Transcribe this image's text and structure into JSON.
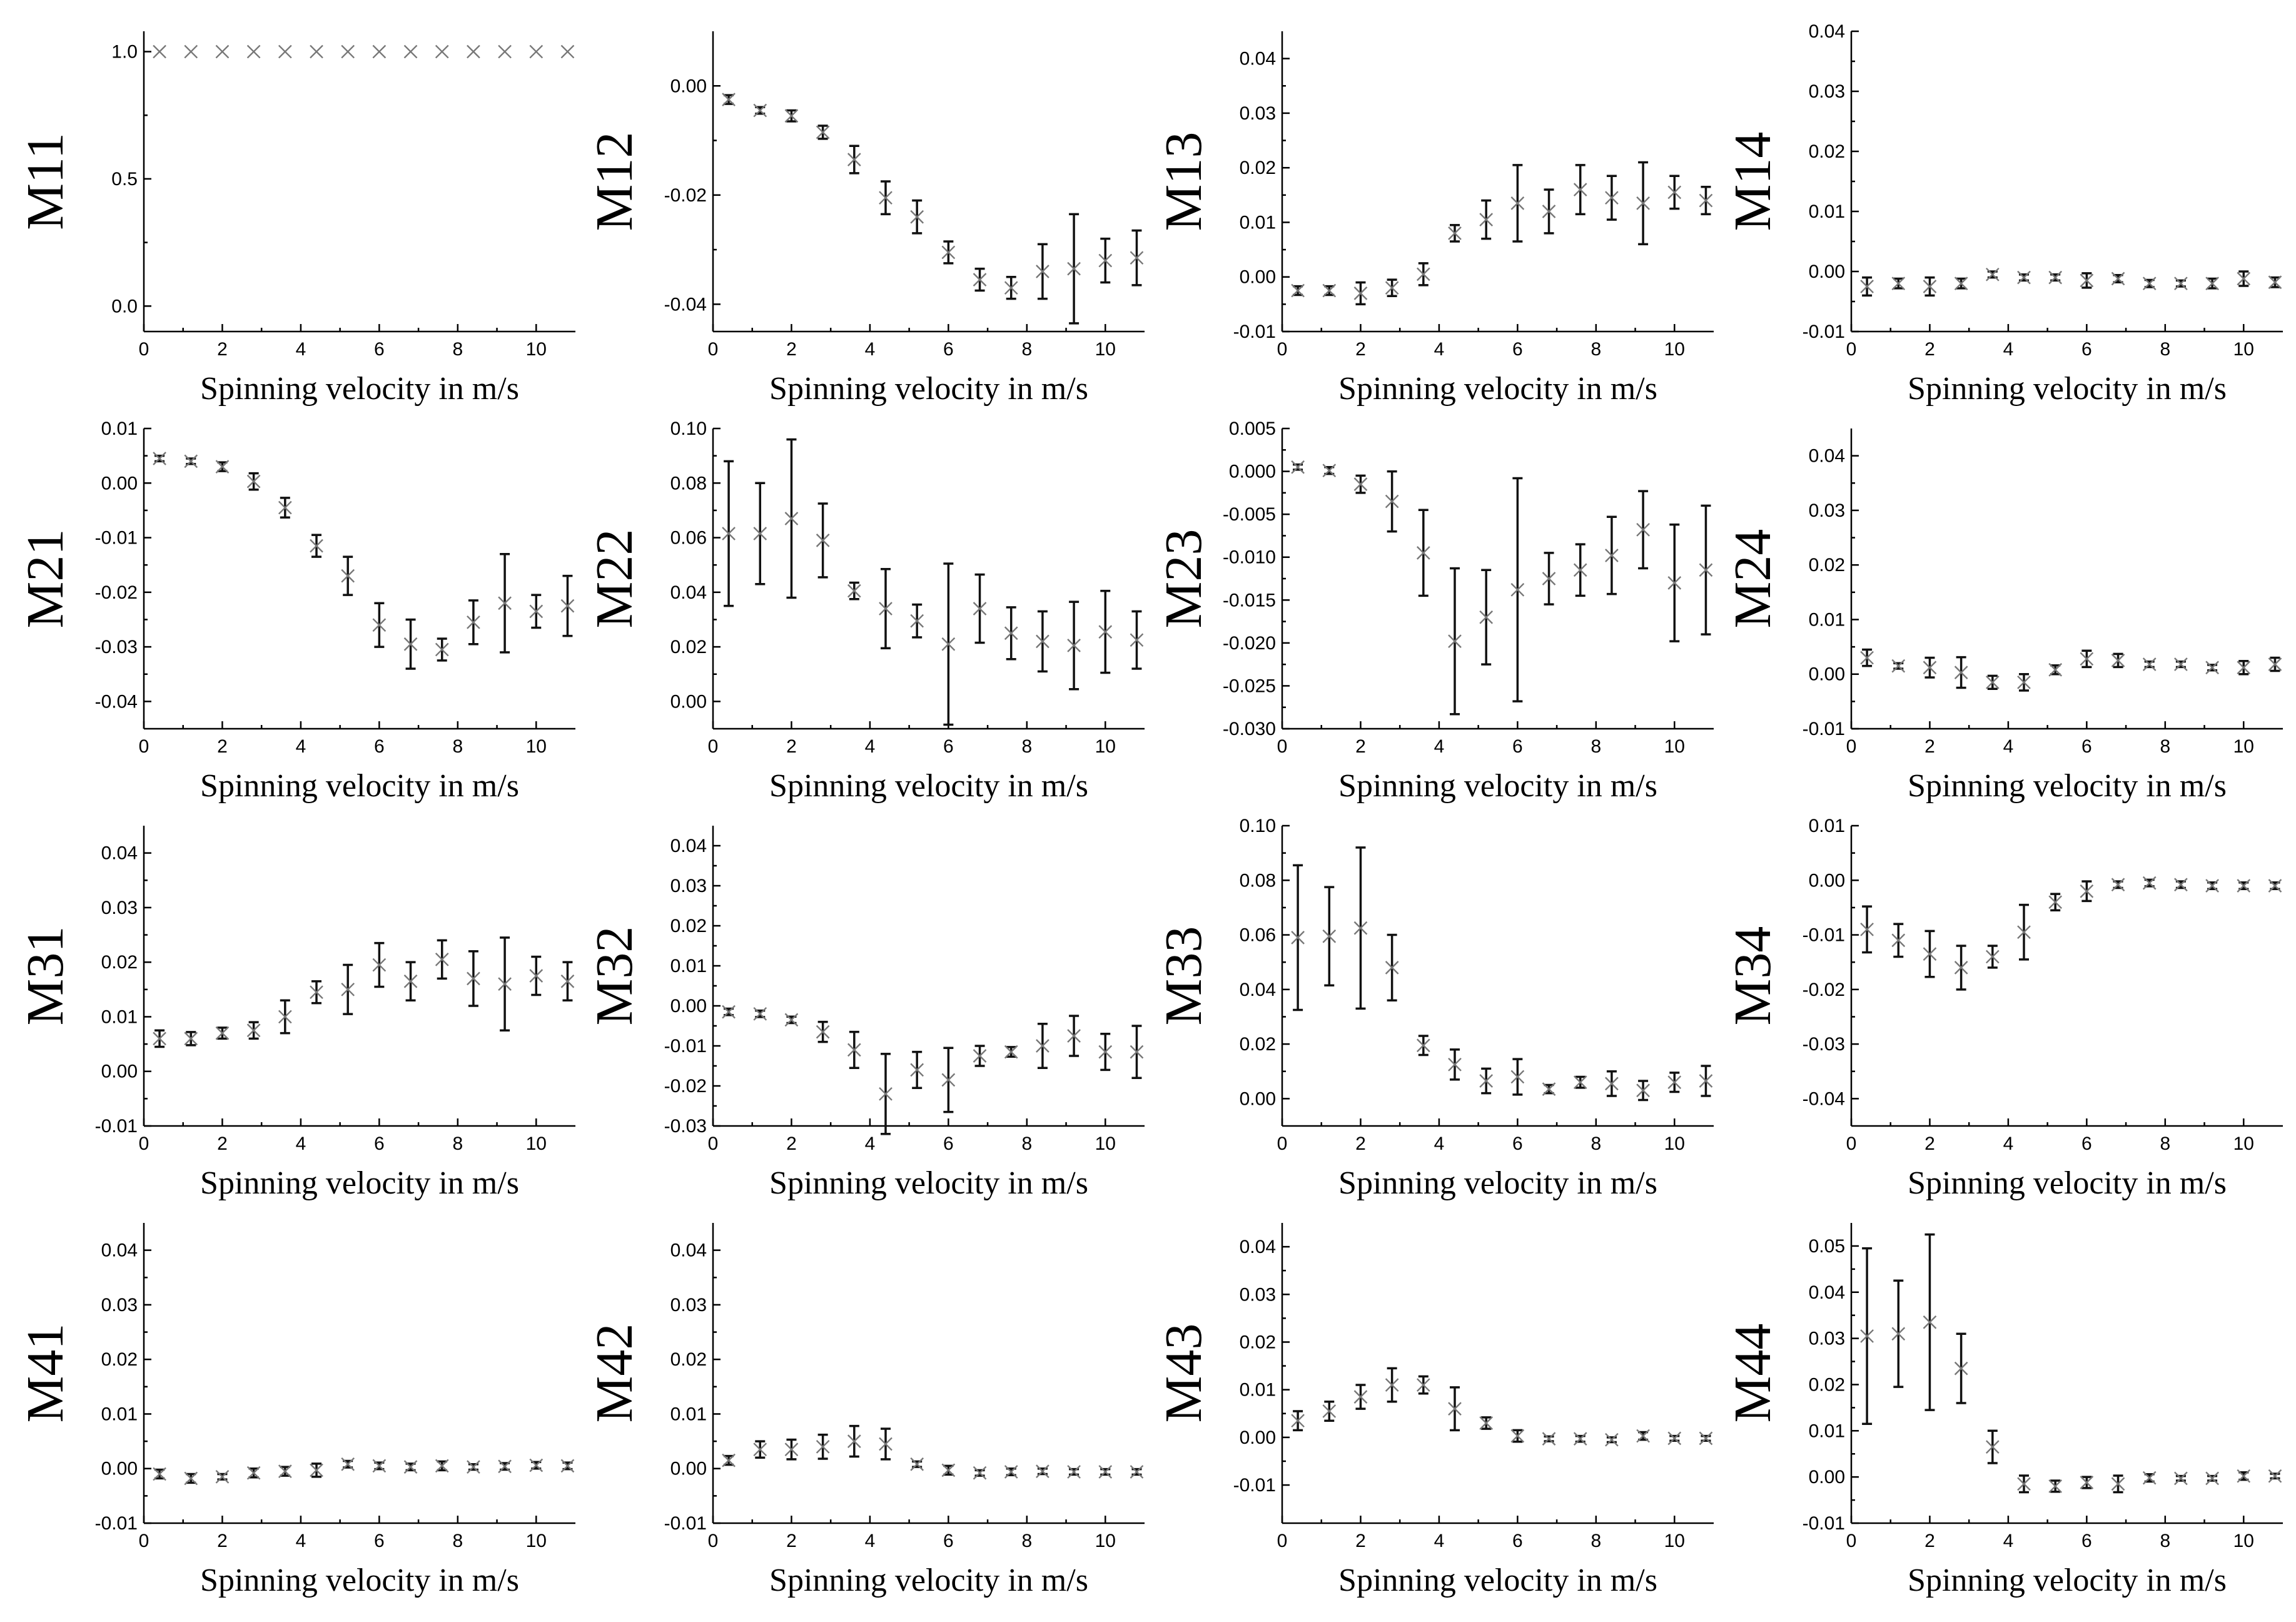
{
  "chart_data": [
    {
      "type": "scatter",
      "panel": "M11",
      "ylabel": "M11",
      "xlabel": "Spinning velocity in m/s",
      "xlim": [
        0,
        11
      ],
      "xticks": [
        0,
        2,
        4,
        6,
        8,
        10
      ],
      "ylim": [
        -0.1,
        1.08
      ],
      "yticks": [
        0.0,
        0.5,
        1.0
      ],
      "ytick_labels": [
        "0.0",
        "0.5",
        "1.0"
      ],
      "x": [
        0.4,
        1.2,
        2.0,
        2.8,
        3.6,
        4.4,
        5.2,
        6.0,
        6.8,
        7.6,
        8.4,
        9.2,
        10.0,
        10.8
      ],
      "y": [
        1,
        1,
        1,
        1,
        1,
        1,
        1,
        1,
        1,
        1,
        1,
        1,
        1,
        1
      ],
      "err": [
        0,
        0,
        0,
        0,
        0,
        0,
        0,
        0,
        0,
        0,
        0,
        0,
        0,
        0
      ]
    },
    {
      "type": "scatter",
      "panel": "M12",
      "ylabel": "M12",
      "xlabel": "Spinning velocity in m/s",
      "xlim": [
        0,
        11
      ],
      "xticks": [
        0,
        2,
        4,
        6,
        8,
        10
      ],
      "ylim": [
        -0.045,
        0.01
      ],
      "yticks": [
        -0.04,
        -0.02,
        0.0
      ],
      "ytick_labels": [
        "-0.04",
        "-0.02",
        "0.00"
      ],
      "x": [
        0.4,
        1.2,
        2.0,
        2.8,
        3.6,
        4.4,
        5.2,
        6.0,
        6.8,
        7.6,
        8.4,
        9.2,
        10.0,
        10.8
      ],
      "y": [
        -0.0025,
        -0.0045,
        -0.0055,
        -0.0085,
        -0.0135,
        -0.0205,
        -0.024,
        -0.0305,
        -0.0355,
        -0.037,
        -0.034,
        -0.0335,
        -0.032,
        -0.0315
      ],
      "err": [
        0.0008,
        0.0006,
        0.001,
        0.0012,
        0.0025,
        0.003,
        0.003,
        0.002,
        0.002,
        0.002,
        0.005,
        0.01,
        0.004,
        0.005
      ]
    },
    {
      "type": "scatter",
      "panel": "M13",
      "ylabel": "M13",
      "xlabel": "Spinning velocity in m/s",
      "xlim": [
        0,
        11
      ],
      "xticks": [
        0,
        2,
        4,
        6,
        8,
        10
      ],
      "ylim": [
        -0.01,
        0.045
      ],
      "yticks": [
        -0.01,
        0.0,
        0.01,
        0.02,
        0.03,
        0.04
      ],
      "ytick_labels": [
        "-0.01",
        "0.00",
        "0.01",
        "0.02",
        "0.03",
        "0.04"
      ],
      "x": [
        0.4,
        1.2,
        2.0,
        2.8,
        3.6,
        4.4,
        5.2,
        6.0,
        6.8,
        7.6,
        8.4,
        9.2,
        10.0,
        10.8
      ],
      "y": [
        -0.0025,
        -0.0025,
        -0.003,
        -0.002,
        0.0005,
        0.008,
        0.0105,
        0.0135,
        0.012,
        0.016,
        0.0145,
        0.0135,
        0.0155,
        0.014
      ],
      "err": [
        0.0008,
        0.0008,
        0.002,
        0.0015,
        0.002,
        0.0015,
        0.0035,
        0.007,
        0.004,
        0.0045,
        0.004,
        0.0075,
        0.003,
        0.0025
      ]
    },
    {
      "type": "scatter",
      "panel": "M14",
      "ylabel": "M14",
      "xlabel": "Spinning velocity in m/s",
      "xlim": [
        0,
        11
      ],
      "xticks": [
        0,
        2,
        4,
        6,
        8,
        10
      ],
      "ylim": [
        -0.01,
        0.04
      ],
      "yticks": [
        -0.01,
        0.0,
        0.01,
        0.02,
        0.03,
        0.04
      ],
      "ytick_labels": [
        "-0.01",
        "0.00",
        "0.01",
        "0.02",
        "0.03",
        "0.04"
      ],
      "x": [
        0.4,
        1.2,
        2.0,
        2.8,
        3.6,
        4.4,
        5.2,
        6.0,
        6.8,
        7.6,
        8.4,
        9.2,
        10.0,
        10.8
      ],
      "y": [
        -0.0025,
        -0.002,
        -0.0025,
        -0.002,
        -0.0005,
        -0.001,
        -0.001,
        -0.0015,
        -0.0012,
        -0.002,
        -0.002,
        -0.002,
        -0.0012,
        -0.0018
      ],
      "err": [
        0.0015,
        0.0008,
        0.0015,
        0.0008,
        0.0005,
        0.0005,
        0.0005,
        0.0012,
        0.0006,
        0.0006,
        0.0005,
        0.0008,
        0.0012,
        0.0008
      ]
    },
    {
      "type": "scatter",
      "panel": "M21",
      "ylabel": "M21",
      "xlabel": "Spinning velocity in m/s",
      "xlim": [
        0,
        11
      ],
      "xticks": [
        0,
        2,
        4,
        6,
        8,
        10
      ],
      "ylim": [
        -0.045,
        0.01
      ],
      "yticks": [
        -0.04,
        -0.03,
        -0.02,
        -0.01,
        0.0,
        0.01
      ],
      "ytick_labels": [
        "-0.04",
        "-0.03",
        "-0.02",
        "-0.01",
        "0.00",
        "0.01"
      ],
      "x": [
        0.4,
        1.2,
        2.0,
        2.8,
        3.6,
        4.4,
        5.2,
        6.0,
        6.8,
        7.6,
        8.4,
        9.2,
        10.0,
        10.8
      ],
      "y": [
        0.0045,
        0.004,
        0.003,
        0.0003,
        -0.0045,
        -0.0115,
        -0.017,
        -0.026,
        -0.0295,
        -0.0305,
        -0.0255,
        -0.022,
        -0.0235,
        -0.0225
      ],
      "err": [
        0.0005,
        0.0005,
        0.0008,
        0.0015,
        0.0018,
        0.002,
        0.0035,
        0.004,
        0.0045,
        0.002,
        0.004,
        0.009,
        0.003,
        0.0055
      ]
    },
    {
      "type": "scatter",
      "panel": "M22",
      "ylabel": "M22",
      "xlabel": "Spinning velocity in m/s",
      "xlim": [
        0,
        11
      ],
      "xticks": [
        0,
        2,
        4,
        6,
        8,
        10
      ],
      "ylim": [
        -0.01,
        0.1
      ],
      "yticks": [
        0.0,
        0.02,
        0.04,
        0.06,
        0.08,
        0.1
      ],
      "ytick_labels": [
        "0.00",
        "0.02",
        "0.04",
        "0.06",
        "0.08",
        "0.10"
      ],
      "x": [
        0.4,
        1.2,
        2.0,
        2.8,
        3.6,
        4.4,
        5.2,
        6.0,
        6.8,
        7.6,
        8.4,
        9.2,
        10.0,
        10.8
      ],
      "y": [
        0.0615,
        0.0615,
        0.067,
        0.059,
        0.0405,
        0.034,
        0.0295,
        0.021,
        0.034,
        0.025,
        0.022,
        0.0205,
        0.0255,
        0.0225
      ],
      "err": [
        0.0265,
        0.0185,
        0.029,
        0.0135,
        0.003,
        0.0145,
        0.006,
        0.0295,
        0.0125,
        0.0095,
        0.011,
        0.016,
        0.015,
        0.0105
      ]
    },
    {
      "type": "scatter",
      "panel": "M23",
      "ylabel": "M23",
      "xlabel": "Spinning velocity in m/s",
      "xlim": [
        0,
        11
      ],
      "xticks": [
        0,
        2,
        4,
        6,
        8,
        10
      ],
      "ylim": [
        -0.03,
        0.005
      ],
      "yticks": [
        -0.03,
        -0.025,
        -0.02,
        -0.015,
        -0.01,
        -0.005,
        0.0,
        0.005
      ],
      "ytick_labels": [
        "-0.030",
        "-0.025",
        "-0.020",
        "-0.015",
        "-0.010",
        "-0.005",
        "0.000",
        "0.005"
      ],
      "x": [
        0.4,
        1.2,
        2.0,
        2.8,
        3.6,
        4.4,
        5.2,
        6.0,
        6.8,
        7.6,
        8.4,
        9.2,
        10.0,
        10.8
      ],
      "y": [
        0.0005,
        0.0001,
        -0.0015,
        -0.0035,
        -0.0095,
        -0.0198,
        -0.017,
        -0.0138,
        -0.0125,
        -0.0115,
        -0.0098,
        -0.0068,
        -0.013,
        -0.0115
      ],
      "err": [
        0.0003,
        0.0004,
        0.001,
        0.0035,
        0.005,
        0.0085,
        0.0055,
        0.013,
        0.003,
        0.003,
        0.0045,
        0.0045,
        0.0068,
        0.0075
      ]
    },
    {
      "type": "scatter",
      "panel": "M24",
      "ylabel": "M24",
      "xlabel": "Spinning velocity in m/s",
      "xlim": [
        0,
        11
      ],
      "xticks": [
        0,
        2,
        4,
        6,
        8,
        10
      ],
      "ylim": [
        -0.01,
        0.045
      ],
      "yticks": [
        -0.01,
        0.0,
        0.01,
        0.02,
        0.03,
        0.04
      ],
      "ytick_labels": [
        "-0.01",
        "0.00",
        "0.01",
        "0.02",
        "0.03",
        "0.04"
      ],
      "x": [
        0.4,
        1.2,
        2.0,
        2.8,
        3.6,
        4.4,
        5.2,
        6.0,
        6.8,
        7.6,
        8.4,
        9.2,
        10.0,
        10.8
      ],
      "y": [
        0.003,
        0.0015,
        0.0012,
        0.0003,
        -0.0015,
        -0.0015,
        0.0008,
        0.0028,
        0.0025,
        0.0018,
        0.0018,
        0.0012,
        0.0012,
        0.0018
      ],
      "err": [
        0.0015,
        0.0005,
        0.0018,
        0.0028,
        0.0012,
        0.0015,
        0.0008,
        0.0015,
        0.0012,
        0.0005,
        0.0005,
        0.0005,
        0.0012,
        0.0012
      ]
    },
    {
      "type": "scatter",
      "panel": "M31",
      "ylabel": "M31",
      "xlabel": "Spinning velocity in m/s",
      "xlim": [
        0,
        11
      ],
      "xticks": [
        0,
        2,
        4,
        6,
        8,
        10
      ],
      "ylim": [
        -0.01,
        0.045
      ],
      "yticks": [
        -0.01,
        0.0,
        0.01,
        0.02,
        0.03,
        0.04
      ],
      "ytick_labels": [
        "-0.01",
        "0.00",
        "0.01",
        "0.02",
        "0.03",
        "0.04"
      ],
      "x": [
        0.4,
        1.2,
        2.0,
        2.8,
        3.6,
        4.4,
        5.2,
        6.0,
        6.8,
        7.6,
        8.4,
        9.2,
        10.0,
        10.8
      ],
      "y": [
        0.006,
        0.006,
        0.007,
        0.0075,
        0.01,
        0.0145,
        0.015,
        0.0195,
        0.0165,
        0.0205,
        0.017,
        0.016,
        0.0175,
        0.0165
      ],
      "err": [
        0.0015,
        0.0012,
        0.001,
        0.0015,
        0.003,
        0.002,
        0.0045,
        0.004,
        0.0035,
        0.0035,
        0.005,
        0.0085,
        0.0035,
        0.0035
      ]
    },
    {
      "type": "scatter",
      "panel": "M32",
      "ylabel": "M32",
      "xlabel": "Spinning velocity in m/s",
      "xlim": [
        0,
        11
      ],
      "xticks": [
        0,
        2,
        4,
        6,
        8,
        10
      ],
      "ylim": [
        -0.03,
        0.045
      ],
      "yticks": [
        -0.03,
        -0.02,
        -0.01,
        0.0,
        0.01,
        0.02,
        0.03,
        0.04
      ],
      "ytick_labels": [
        "-0.03",
        "-0.02",
        "-0.01",
        "0.00",
        "0.01",
        "0.02",
        "0.03",
        "0.04"
      ],
      "x": [
        0.4,
        1.2,
        2.0,
        2.8,
        3.6,
        4.4,
        5.2,
        6.0,
        6.8,
        7.6,
        8.4,
        9.2,
        10.0,
        10.8
      ],
      "y": [
        -0.0015,
        -0.002,
        -0.0035,
        -0.0065,
        -0.011,
        -0.022,
        -0.016,
        -0.0185,
        -0.0125,
        -0.0115,
        -0.01,
        -0.0075,
        -0.0115,
        -0.0115
      ],
      "err": [
        0.0008,
        0.0008,
        0.0008,
        0.0025,
        0.0045,
        0.01,
        0.0045,
        0.008,
        0.0025,
        0.0012,
        0.0055,
        0.005,
        0.0045,
        0.0065
      ]
    },
    {
      "type": "scatter",
      "panel": "M33",
      "ylabel": "M33",
      "xlabel": "Spinning velocity in m/s",
      "xlim": [
        0,
        11
      ],
      "xticks": [
        0,
        2,
        4,
        6,
        8,
        10
      ],
      "ylim": [
        -0.01,
        0.1
      ],
      "yticks": [
        0.0,
        0.02,
        0.04,
        0.06,
        0.08,
        0.1
      ],
      "ytick_labels": [
        "0.00",
        "0.02",
        "0.04",
        "0.06",
        "0.08",
        "0.10"
      ],
      "x": [
        0.4,
        1.2,
        2.0,
        2.8,
        3.6,
        4.4,
        5.2,
        6.0,
        6.8,
        7.6,
        8.4,
        9.2,
        10.0,
        10.8
      ],
      "y": [
        0.059,
        0.0595,
        0.0625,
        0.048,
        0.0195,
        0.0125,
        0.0065,
        0.008,
        0.0035,
        0.006,
        0.0055,
        0.003,
        0.006,
        0.0065
      ],
      "err": [
        0.0265,
        0.018,
        0.0295,
        0.012,
        0.0035,
        0.0055,
        0.0045,
        0.0065,
        0.0015,
        0.002,
        0.0045,
        0.0035,
        0.0035,
        0.0055
      ]
    },
    {
      "type": "scatter",
      "panel": "M34",
      "ylabel": "M34",
      "xlabel": "Spinning velocity in m/s",
      "xlim": [
        0,
        11
      ],
      "xticks": [
        0,
        2,
        4,
        6,
        8,
        10
      ],
      "ylim": [
        -0.045,
        0.01
      ],
      "yticks": [
        -0.04,
        -0.03,
        -0.02,
        -0.01,
        0.0,
        0.01
      ],
      "ytick_labels": [
        "-0.04",
        "-0.03",
        "-0.02",
        "-0.01",
        "0.00",
        "0.01"
      ],
      "x": [
        0.4,
        1.2,
        2.0,
        2.8,
        3.6,
        4.4,
        5.2,
        6.0,
        6.8,
        7.6,
        8.4,
        9.2,
        10.0,
        10.8
      ],
      "y": [
        -0.009,
        -0.011,
        -0.0135,
        -0.016,
        -0.014,
        -0.0095,
        -0.004,
        -0.002,
        -0.0008,
        -0.0005,
        -0.0008,
        -0.001,
        -0.001,
        -0.001
      ],
      "err": [
        0.0042,
        0.003,
        0.0042,
        0.004,
        0.002,
        0.005,
        0.0015,
        0.0018,
        0.0006,
        0.0006,
        0.0006,
        0.0006,
        0.0006,
        0.0006
      ]
    },
    {
      "type": "scatter",
      "panel": "M41",
      "ylabel": "M41",
      "xlabel": "Spinning velocity in m/s",
      "xlim": [
        0,
        11
      ],
      "xticks": [
        0,
        2,
        4,
        6,
        8,
        10
      ],
      "ylim": [
        -0.01,
        0.045
      ],
      "yticks": [
        -0.01,
        0.0,
        0.01,
        0.02,
        0.03,
        0.04
      ],
      "ytick_labels": [
        "-0.01",
        "0.00",
        "0.01",
        "0.02",
        "0.03",
        "0.04"
      ],
      "x": [
        0.4,
        1.2,
        2.0,
        2.8,
        3.6,
        4.4,
        5.2,
        6.0,
        6.8,
        7.6,
        8.4,
        9.2,
        10.0,
        10.8
      ],
      "y": [
        -0.001,
        -0.0018,
        -0.0015,
        -0.0008,
        -0.0005,
        -0.0003,
        0.0008,
        0.0005,
        0.0003,
        0.0005,
        0.0003,
        0.0004,
        0.0006,
        0.0005
      ],
      "err": [
        0.0008,
        0.0008,
        0.0005,
        0.0008,
        0.0008,
        0.0012,
        0.0006,
        0.0006,
        0.0006,
        0.0008,
        0.0005,
        0.0006,
        0.0006,
        0.0006
      ]
    },
    {
      "type": "scatter",
      "panel": "M42",
      "ylabel": "M42",
      "xlabel": "Spinning velocity in m/s",
      "xlim": [
        0,
        11
      ],
      "xticks": [
        0,
        2,
        4,
        6,
        8,
        10
      ],
      "ylim": [
        -0.01,
        0.045
      ],
      "yticks": [
        -0.01,
        0.0,
        0.01,
        0.02,
        0.03,
        0.04
      ],
      "ytick_labels": [
        "-0.01",
        "0.00",
        "0.01",
        "0.02",
        "0.03",
        "0.04"
      ],
      "x": [
        0.4,
        1.2,
        2.0,
        2.8,
        3.6,
        4.4,
        5.2,
        6.0,
        6.8,
        7.6,
        8.4,
        9.2,
        10.0,
        10.8
      ],
      "y": [
        0.0015,
        0.0035,
        0.0035,
        0.004,
        0.005,
        0.0045,
        0.0008,
        -0.0003,
        -0.0008,
        -0.0006,
        -0.0005,
        -0.0006,
        -0.0006,
        -0.0006
      ],
      "err": [
        0.0008,
        0.0015,
        0.0018,
        0.0022,
        0.0028,
        0.0028,
        0.0005,
        0.0008,
        0.0005,
        0.0006,
        0.0005,
        0.0005,
        0.0005,
        0.0005
      ]
    },
    {
      "type": "scatter",
      "panel": "M43",
      "ylabel": "M43",
      "xlabel": "Spinning velocity in m/s",
      "xlim": [
        0,
        11
      ],
      "xticks": [
        0,
        2,
        4,
        6,
        8,
        10
      ],
      "ylim": [
        -0.018,
        0.045
      ],
      "yticks": [
        -0.01,
        0.0,
        0.01,
        0.02,
        0.03,
        0.04
      ],
      "ytick_labels": [
        "-0.01",
        "0.00",
        "0.01",
        "0.02",
        "0.03",
        "0.04"
      ],
      "x": [
        0.4,
        1.2,
        2.0,
        2.8,
        3.6,
        4.4,
        5.2,
        6.0,
        6.8,
        7.6,
        8.4,
        9.2,
        10.0,
        10.8
      ],
      "y": [
        0.0035,
        0.0055,
        0.0085,
        0.011,
        0.011,
        0.006,
        0.003,
        0.0003,
        -0.0003,
        -0.0003,
        -0.0005,
        0.0003,
        -0.0002,
        -0.0002
      ],
      "err": [
        0.002,
        0.002,
        0.0025,
        0.0035,
        0.0018,
        0.0045,
        0.0012,
        0.0012,
        0.0005,
        0.0006,
        0.0005,
        0.0008,
        0.0005,
        0.0005
      ]
    },
    {
      "type": "scatter",
      "panel": "M44",
      "ylabel": "M44",
      "xlabel": "Spinning velocity in m/s",
      "xlim": [
        0,
        11
      ],
      "xticks": [
        0,
        2,
        4,
        6,
        8,
        10
      ],
      "ylim": [
        -0.01,
        0.055
      ],
      "yticks": [
        -0.01,
        0.0,
        0.01,
        0.02,
        0.03,
        0.04,
        0.05
      ],
      "ytick_labels": [
        "-0.01",
        "0.00",
        "0.01",
        "0.02",
        "0.03",
        "0.04",
        "0.05"
      ],
      "x": [
        0.4,
        1.2,
        2.0,
        2.8,
        3.6,
        4.4,
        5.2,
        6.0,
        6.8,
        7.6,
        8.4,
        9.2,
        10.0,
        10.8
      ],
      "y": [
        0.0305,
        0.031,
        0.0335,
        0.0235,
        0.0065,
        -0.0015,
        -0.002,
        -0.0012,
        -0.0015,
        -0.0002,
        -0.0003,
        -0.0003,
        0.0002,
        0.0002
      ],
      "err": [
        0.019,
        0.0115,
        0.019,
        0.0075,
        0.0035,
        0.0018,
        0.0012,
        0.0012,
        0.0018,
        0.0008,
        0.0005,
        0.0005,
        0.0008,
        0.0005
      ]
    }
  ]
}
